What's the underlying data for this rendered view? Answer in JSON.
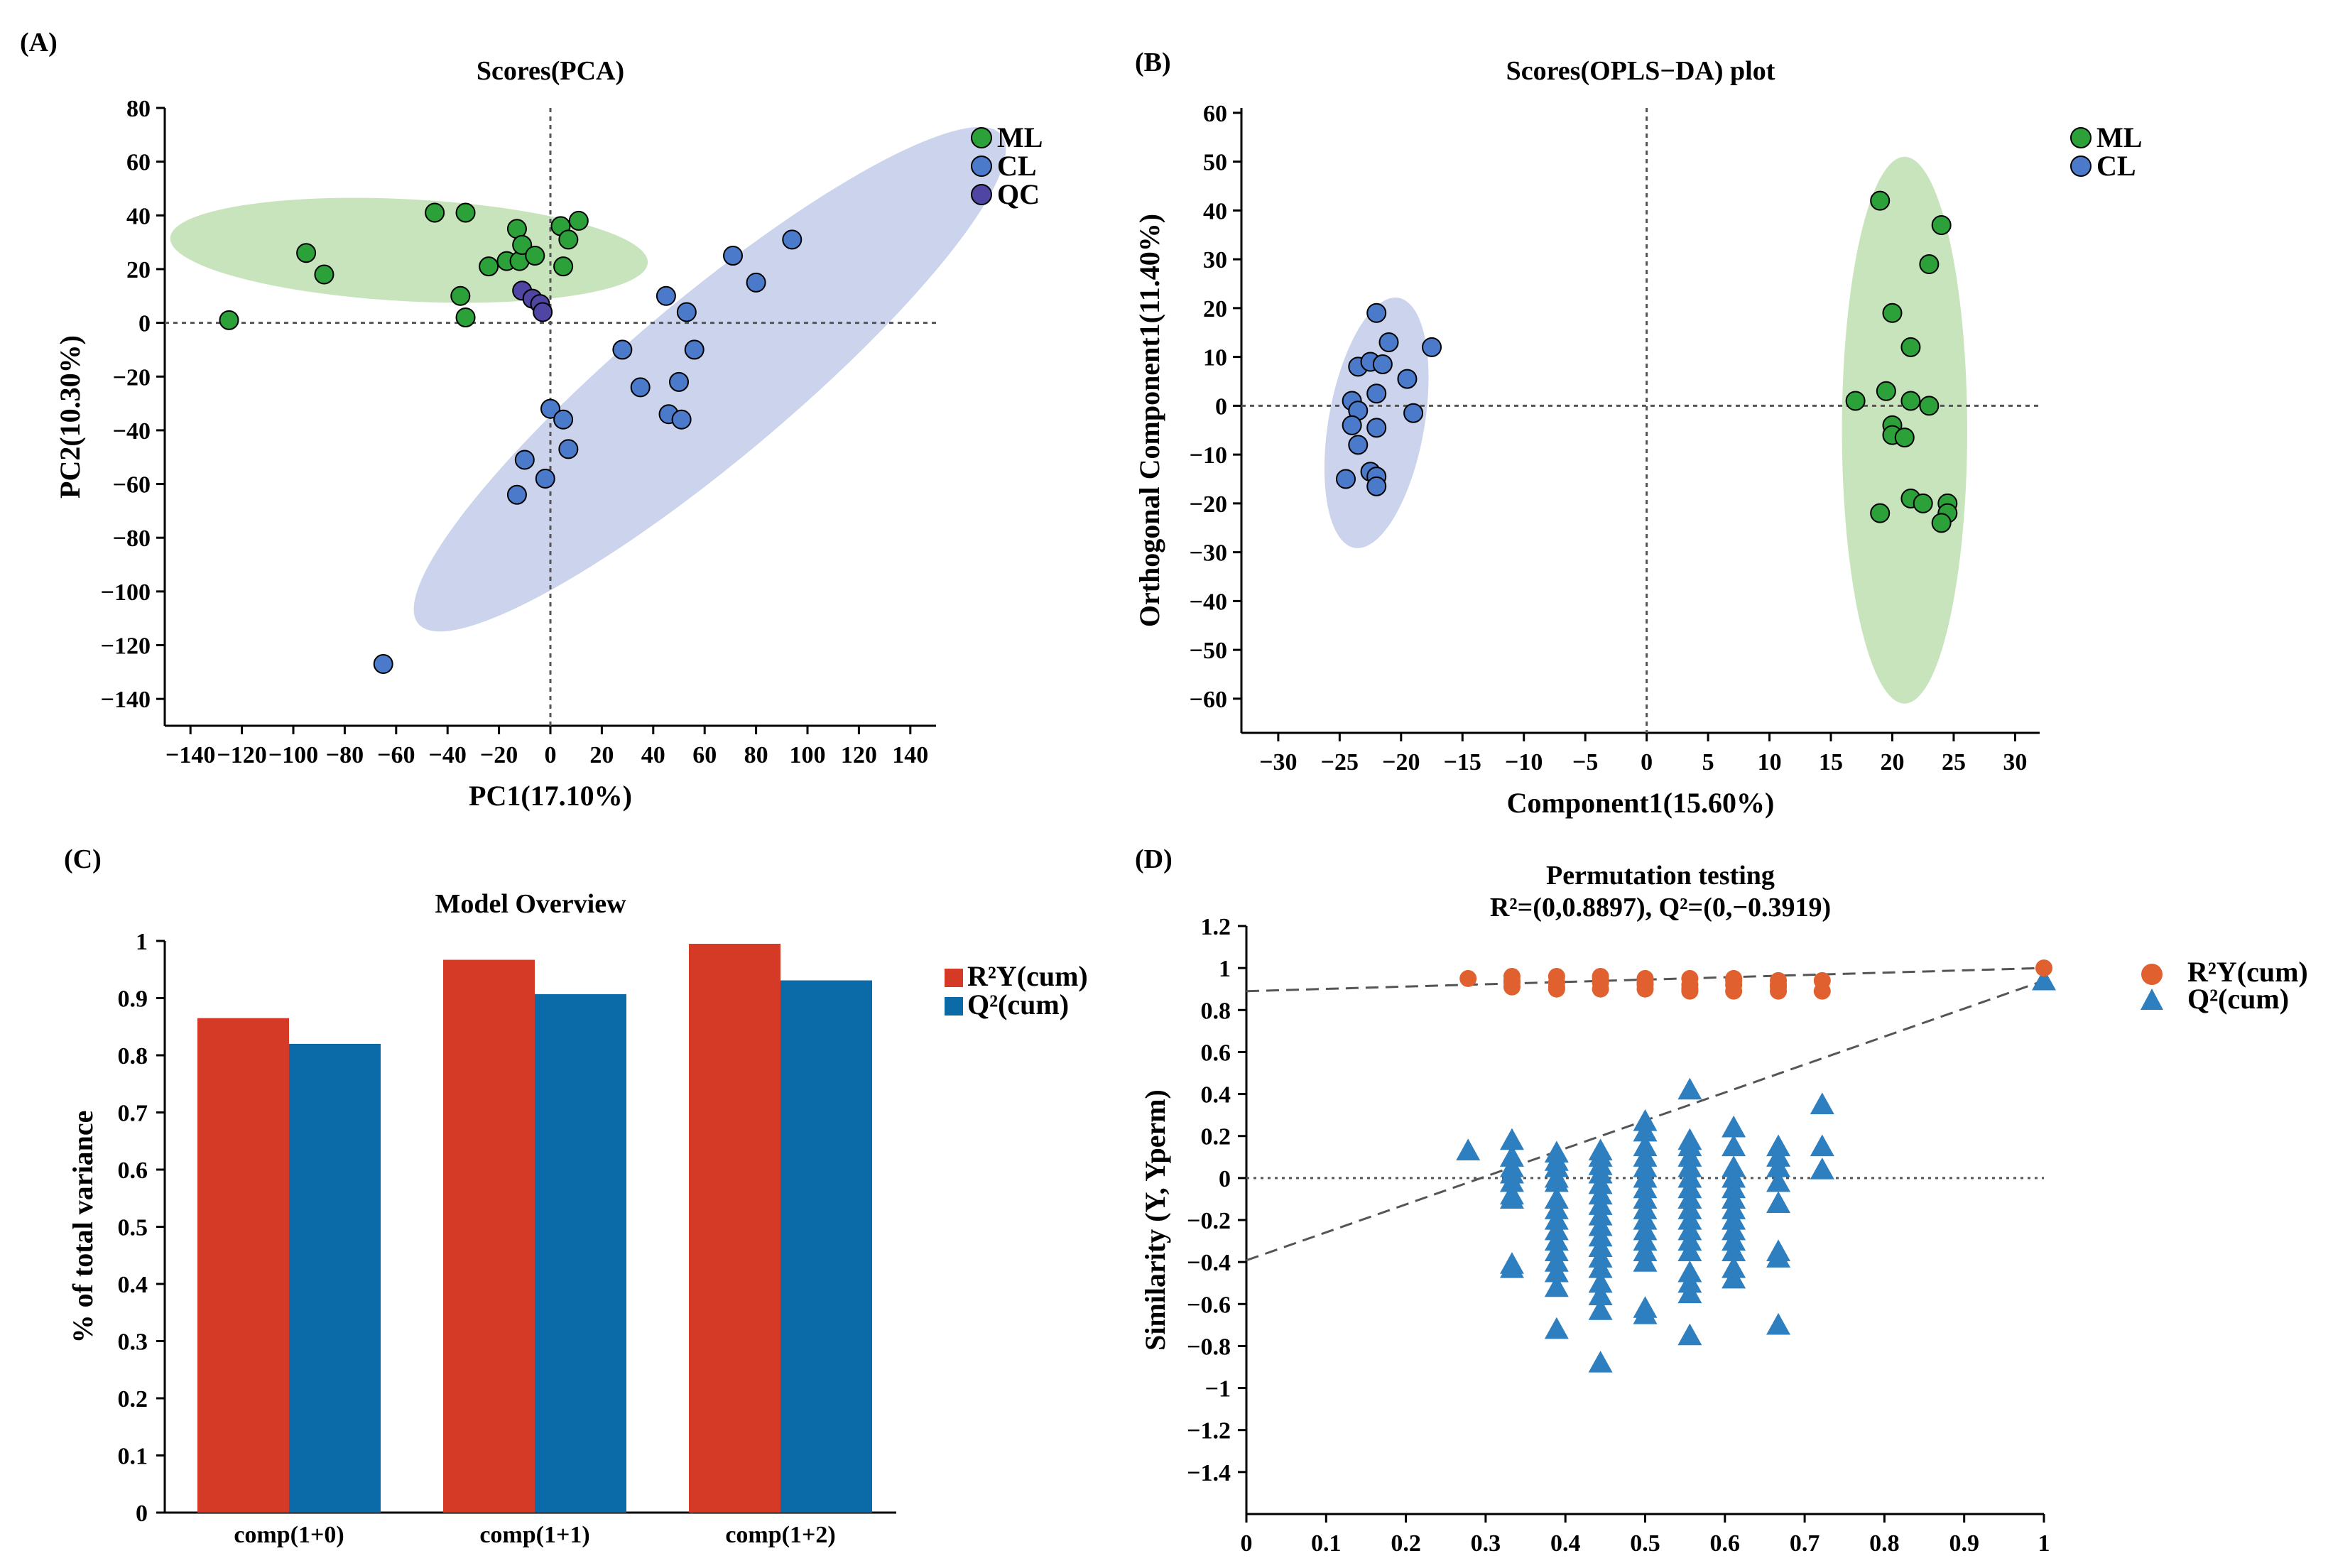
{
  "colors": {
    "ml": "#2ca13a",
    "cl": "#4a7ac9",
    "qc": "#4f45a3",
    "ml_ellipse": "#b5dba5",
    "cl_ellipse": "#b9c5e6",
    "r2y_bar": "#d43a25",
    "q2_bar": "#0b6ba9",
    "r2y_perm": "#e06030",
    "q2_perm": "#2e7fbf"
  },
  "chart_data": [
    {
      "panel": "(A)",
      "type": "scatter",
      "title": "Scores(PCA)",
      "xlabel": "PC1(17.10%)",
      "ylabel": "PC2(10.30%)",
      "xlim": [
        -150,
        150
      ],
      "ylim": [
        -150,
        80
      ],
      "xticks": [
        -140,
        -120,
        -100,
        -80,
        -60,
        -40,
        -20,
        0,
        20,
        40,
        60,
        80,
        100,
        120,
        140
      ],
      "yticks": [
        80,
        60,
        40,
        20,
        0,
        -20,
        -40,
        -60,
        -80,
        -100,
        -120,
        -140
      ],
      "xtick_labels": [
        "−140",
        "−120",
        "−100",
        "−80",
        "−60",
        "−40",
        "−20",
        "0",
        "20",
        "40",
        "60",
        "80",
        "100",
        "120",
        "140"
      ],
      "ytick_labels": [
        "80",
        "60",
        "40",
        "20",
        "0",
        "−20",
        "−40",
        "−60",
        "−80",
        "−100",
        "−120",
        "−140"
      ],
      "legend": [
        "ML",
        "CL",
        "QC"
      ],
      "ellipses": [
        {
          "group": "ML",
          "cx": -55,
          "cy": 27,
          "rx": 93,
          "ry": 19,
          "angle": 3
        },
        {
          "group": "CL",
          "cx": 62,
          "cy": -21,
          "rx": 148,
          "ry": 30,
          "angle": -40
        }
      ],
      "series": [
        {
          "name": "ML",
          "points": [
            [
              -125,
              1
            ],
            [
              -95,
              26
            ],
            [
              -88,
              18
            ],
            [
              -45,
              41
            ],
            [
              -33,
              41
            ],
            [
              -35,
              10
            ],
            [
              -33,
              2
            ],
            [
              -24,
              21
            ],
            [
              -17,
              23
            ],
            [
              -13,
              35
            ],
            [
              -12,
              23
            ],
            [
              -11,
              29
            ],
            [
              -6,
              25
            ],
            [
              4,
              36
            ],
            [
              5,
              21
            ],
            [
              7,
              31
            ],
            [
              11,
              38
            ]
          ]
        },
        {
          "name": "CL",
          "points": [
            [
              -65,
              -127
            ],
            [
              -13,
              -64
            ],
            [
              -10,
              -51
            ],
            [
              -2,
              -58
            ],
            [
              0,
              -32
            ],
            [
              5,
              -36
            ],
            [
              7,
              -47
            ],
            [
              28,
              -10
            ],
            [
              35,
              -24
            ],
            [
              45,
              10
            ],
            [
              46,
              -34
            ],
            [
              50,
              -22
            ],
            [
              51,
              -36
            ],
            [
              53,
              4
            ],
            [
              56,
              -10
            ],
            [
              71,
              25
            ],
            [
              80,
              15
            ],
            [
              94,
              31
            ]
          ]
        },
        {
          "name": "QC",
          "points": [
            [
              -11,
              12
            ],
            [
              -7,
              9
            ],
            [
              -4,
              7
            ],
            [
              -3,
              4
            ]
          ]
        }
      ]
    },
    {
      "panel": "(B)",
      "type": "scatter",
      "title": "Scores(OPLS−DA) plot",
      "xlabel": "Component1(15.60%)",
      "ylabel": "Orthogonal Component1(11.40%)",
      "xlim": [
        -33,
        32
      ],
      "ylim": [
        -67,
        61
      ],
      "xticks": [
        -30,
        -25,
        -20,
        -15,
        -10,
        -5,
        0,
        5,
        10,
        15,
        20,
        25,
        30
      ],
      "yticks": [
        60,
        50,
        40,
        30,
        20,
        10,
        0,
        -10,
        -20,
        -30,
        -40,
        -50,
        -60
      ],
      "xtick_labels": [
        "−30",
        "−25",
        "−20",
        "−15",
        "−10",
        "−5",
        "0",
        "5",
        "10",
        "15",
        "20",
        "25",
        "30"
      ],
      "ytick_labels": [
        "60",
        "50",
        "40",
        "30",
        "20",
        "10",
        "0",
        "−10",
        "−20",
        "−30",
        "−40",
        "−50",
        "−60"
      ],
      "legend": [
        "ML",
        "CL"
      ],
      "ellipses": [
        {
          "group": "CL",
          "cx": -22,
          "cy": -3.5,
          "rx": 3.9,
          "ry": 26,
          "angle": 10
        },
        {
          "group": "ML",
          "cx": 21,
          "cy": -5,
          "rx": 5.1,
          "ry": 56,
          "angle": 0
        }
      ],
      "series": [
        {
          "name": "ML",
          "points": [
            [
              19,
              42
            ],
            [
              24,
              37
            ],
            [
              23,
              29
            ],
            [
              20,
              19
            ],
            [
              21.5,
              12
            ],
            [
              17,
              1
            ],
            [
              19.5,
              3
            ],
            [
              21.5,
              1
            ],
            [
              23,
              0
            ],
            [
              20,
              -4
            ],
            [
              20,
              -6
            ],
            [
              21,
              -6.5
            ],
            [
              19,
              -22
            ],
            [
              21.5,
              -19
            ],
            [
              22.5,
              -20
            ],
            [
              24.5,
              -20
            ],
            [
              24.5,
              -22
            ],
            [
              24,
              -24
            ]
          ]
        },
        {
          "name": "CL",
          "points": [
            [
              -22,
              19
            ],
            [
              -21,
              13
            ],
            [
              -17.5,
              12
            ],
            [
              -23.5,
              8
            ],
            [
              -22.5,
              9
            ],
            [
              -21.5,
              8.5
            ],
            [
              -19.5,
              5.5
            ],
            [
              -22,
              2.5
            ],
            [
              -24,
              1
            ],
            [
              -23.5,
              -1
            ],
            [
              -19,
              -1.5
            ],
            [
              -24,
              -4
            ],
            [
              -22,
              -4.5
            ],
            [
              -23.5,
              -8
            ],
            [
              -22.5,
              -13.5
            ],
            [
              -22,
              -14.5
            ],
            [
              -24.5,
              -15
            ],
            [
              -22,
              -16.5
            ]
          ]
        }
      ]
    },
    {
      "panel": "(C)",
      "type": "bar",
      "title": "Model Overview",
      "xlabel": "",
      "ylabel": "% of total variance",
      "ylim": [
        0,
        1
      ],
      "yticks": [
        0,
        0.1,
        0.2,
        0.3,
        0.4,
        0.5,
        0.6,
        0.7,
        0.8,
        0.9,
        1
      ],
      "ytick_labels": [
        "0",
        "0.1",
        "0.2",
        "0.3",
        "0.4",
        "0.5",
        "0.6",
        "0.7",
        "0.8",
        "0.9",
        "1"
      ],
      "categories": [
        "comp(1+0)",
        "comp(1+1)",
        "comp(1+2)"
      ],
      "series": [
        {
          "name": "R²Y(cum)",
          "values": [
            0.865,
            0.967,
            0.995
          ]
        },
        {
          "name": "Q²(cum)",
          "values": [
            0.82,
            0.907,
            0.931
          ]
        }
      ]
    },
    {
      "panel": "(D)",
      "type": "scatter",
      "title": "Permutation testing",
      "subtitle": "R²=(0,0.8897), Q²=(0,−0.3919)",
      "xlabel": "",
      "ylabel": "Similarity (Y, Yperm)",
      "xlim": [
        0,
        1
      ],
      "ylim": [
        -1.6,
        1.2
      ],
      "xticks": [
        0,
        0.1,
        0.2,
        0.3,
        0.4,
        0.5,
        0.6,
        0.7,
        0.8,
        0.9,
        1
      ],
      "yticks": [
        1.2,
        1,
        0.8,
        0.6,
        0.4,
        0.2,
        0,
        -0.2,
        -0.4,
        -0.6,
        -0.8,
        -1,
        -1.2,
        -1.4
      ],
      "xtick_labels": [
        "0",
        "0.1",
        "0.2",
        "0.3",
        "0.4",
        "0.5",
        "0.6",
        "0.7",
        "0.8",
        "0.9",
        "1"
      ],
      "ytick_labels": [
        "1.2",
        "1",
        "0.8",
        "0.6",
        "0.4",
        "0.2",
        "0",
        "−0.2",
        "−0.4",
        "−0.6",
        "−0.8",
        "−1",
        "−1.2",
        "−1.4"
      ],
      "r2_intercept": 0.8897,
      "q2_intercept": -0.3919,
      "r2_original": 1.0,
      "q2_original": 0.94,
      "r2_perm_x": [
        0.278,
        0.333,
        0.389,
        0.444,
        0.5,
        0.556,
        0.611,
        0.667,
        0.722
      ],
      "q2_perm": [
        [
          0.278,
          [
            0.13
          ]
        ],
        [
          0.333,
          [
            0.18,
            0.1,
            0.05,
            0.02,
            -0.02,
            -0.08,
            -0.1,
            -0.41,
            -0.43
          ]
        ],
        [
          0.389,
          [
            0.12,
            0.08,
            0.05,
            0.0,
            -0.02,
            -0.1,
            -0.15,
            -0.2,
            -0.25,
            -0.3,
            -0.35,
            -0.4,
            -0.45,
            -0.52,
            -0.72
          ]
        ],
        [
          0.444,
          [
            0.13,
            0.1,
            0.06,
            0.02,
            -0.03,
            -0.08,
            -0.13,
            -0.18,
            -0.23,
            -0.28,
            -0.33,
            -0.38,
            -0.43,
            -0.5,
            -0.56,
            -0.63,
            -0.88
          ]
        ],
        [
          0.5,
          [
            0.27,
            0.22,
            0.15,
            0.1,
            0.05,
            0.0,
            -0.05,
            -0.1,
            -0.15,
            -0.2,
            -0.25,
            -0.3,
            -0.35,
            -0.4,
            -0.62,
            -0.65
          ]
        ],
        [
          0.556,
          [
            0.42,
            0.18,
            0.15,
            0.1,
            0.05,
            0.0,
            -0.05,
            -0.1,
            -0.15,
            -0.2,
            -0.25,
            -0.3,
            -0.35,
            -0.45,
            -0.5,
            -0.55,
            -0.75
          ]
        ],
        [
          0.611,
          [
            0.24,
            0.15,
            0.05,
            0.0,
            -0.05,
            -0.1,
            -0.15,
            -0.2,
            -0.25,
            -0.3,
            -0.35,
            -0.43,
            -0.48
          ]
        ],
        [
          0.667,
          [
            0.15,
            0.1,
            0.05,
            -0.02,
            -0.12,
            -0.35,
            -0.38,
            -0.7
          ]
        ],
        [
          0.722,
          [
            0.35,
            0.15,
            0.04
          ]
        ]
      ],
      "legend": [
        "R²Y(cum)",
        "Q²(cum)"
      ]
    }
  ]
}
